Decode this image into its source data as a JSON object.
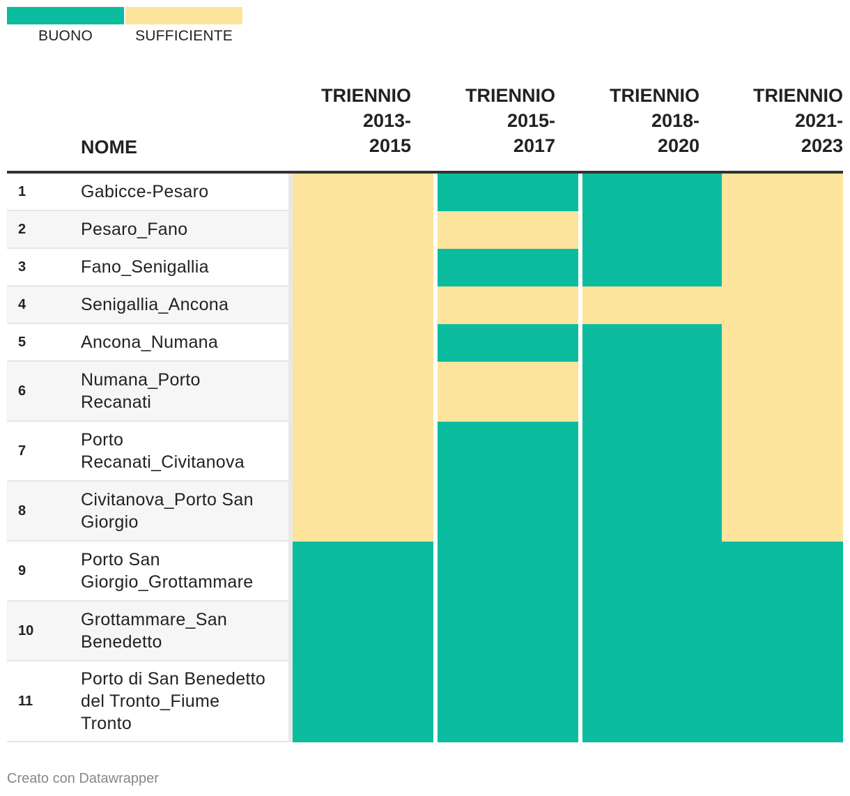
{
  "legend": [
    {
      "label": "BUONO",
      "color": "#0bbc9f"
    },
    {
      "label": "SUFFICIENTE",
      "color": "#fde49c"
    }
  ],
  "colors": {
    "BUONO": "#0bbc9f",
    "SUFFICIENTE": "#fde49c"
  },
  "table": {
    "name_header": "NOME",
    "columns": [
      "TRIENNIO\n2013-\n2015",
      "TRIENNIO\n2015-\n2017",
      "TRIENNIO\n2018-\n2020",
      "TRIENNIO\n2021-\n2023"
    ]
  },
  "chart_data": {
    "type": "table",
    "columns": [
      "TRIENNIO 2013-2015",
      "TRIENNIO 2015-2017",
      "TRIENNIO 2018-2020",
      "TRIENNIO 2021-2023"
    ],
    "rows": [
      {
        "rank": "1",
        "name": "Gabicce-Pesaro",
        "values": [
          "SUFFICIENTE",
          "BUONO",
          "BUONO",
          "SUFFICIENTE"
        ]
      },
      {
        "rank": "2",
        "name": "Pesaro_Fano",
        "values": [
          "SUFFICIENTE",
          "SUFFICIENTE",
          "BUONO",
          "SUFFICIENTE"
        ]
      },
      {
        "rank": "3",
        "name": "Fano_Senigallia",
        "values": [
          "SUFFICIENTE",
          "BUONO",
          "BUONO",
          "SUFFICIENTE"
        ]
      },
      {
        "rank": "4",
        "name": "Senigallia_Ancona",
        "values": [
          "SUFFICIENTE",
          "SUFFICIENTE",
          "SUFFICIENTE",
          "SUFFICIENTE"
        ]
      },
      {
        "rank": "5",
        "name": "Ancona_Numana",
        "values": [
          "SUFFICIENTE",
          "BUONO",
          "BUONO",
          "SUFFICIENTE"
        ]
      },
      {
        "rank": "6",
        "name": "Numana_Porto Recanati",
        "values": [
          "SUFFICIENTE",
          "SUFFICIENTE",
          "BUONO",
          "SUFFICIENTE"
        ]
      },
      {
        "rank": "7",
        "name": "Porto Recanati_Civitanova",
        "values": [
          "SUFFICIENTE",
          "BUONO",
          "BUONO",
          "SUFFICIENTE"
        ]
      },
      {
        "rank": "8",
        "name": "Civitanova_Porto San Giorgio",
        "values": [
          "SUFFICIENTE",
          "BUONO",
          "BUONO",
          "SUFFICIENTE"
        ]
      },
      {
        "rank": "9",
        "name": "Porto San Giorgio_Grottammare",
        "values": [
          "BUONO",
          "BUONO",
          "BUONO",
          "BUONO"
        ]
      },
      {
        "rank": "10",
        "name": "Grottammare_San Benedetto",
        "values": [
          "BUONO",
          "BUONO",
          "BUONO",
          "BUONO"
        ]
      },
      {
        "rank": "11",
        "name": "Porto di San Benedetto del Tronto_Fiume Tronto",
        "values": [
          "BUONO",
          "BUONO",
          "BUONO",
          "BUONO"
        ]
      }
    ]
  },
  "footer": "Creato con Datawrapper"
}
